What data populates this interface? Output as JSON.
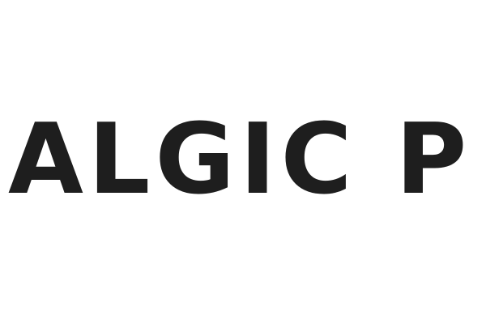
{
  "wordmark": {
    "text": "ALGIC P",
    "color": "#1e1e1e"
  },
  "background": {
    "color": "#ffffff"
  }
}
